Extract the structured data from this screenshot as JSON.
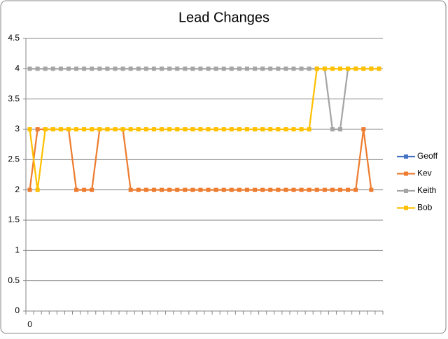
{
  "chart_data": {
    "type": "line",
    "title": "Lead Changes",
    "categories": [
      "0",
      null,
      null,
      null,
      null,
      null,
      null,
      null,
      null,
      null,
      null,
      null,
      null,
      null,
      null,
      null,
      null,
      null,
      null,
      null,
      null,
      null,
      null,
      null,
      null,
      null,
      null,
      null,
      null,
      null,
      null,
      null,
      null,
      null,
      null,
      null,
      null,
      null,
      null,
      null,
      null,
      null,
      null,
      null,
      null,
      null
    ],
    "series": [
      {
        "name": "Geoff",
        "color": "#4472c4",
        "values": [
          null,
          null,
          null,
          null,
          null,
          null,
          null,
          null,
          null,
          null,
          null,
          null,
          null,
          null,
          null,
          null,
          null,
          null,
          null,
          null,
          null,
          null,
          null,
          null,
          null,
          null,
          null,
          null,
          null,
          null,
          null,
          null,
          null,
          null,
          null,
          null,
          null,
          null,
          null,
          null,
          null,
          null,
          null,
          null,
          null,
          null
        ]
      },
      {
        "name": "Kev",
        "color": "#ed7d31",
        "values": [
          2,
          3,
          3,
          3,
          3,
          3,
          2,
          2,
          2,
          3,
          3,
          3,
          3,
          2,
          2,
          2,
          2,
          2,
          2,
          2,
          2,
          2,
          2,
          2,
          2,
          2,
          2,
          2,
          2,
          2,
          2,
          2,
          2,
          2,
          2,
          2,
          2,
          2,
          2,
          2,
          2,
          2,
          2,
          3,
          2,
          null
        ]
      },
      {
        "name": "Keith",
        "color": "#a5a5a5",
        "values": [
          4,
          4,
          4,
          4,
          4,
          4,
          4,
          4,
          4,
          4,
          4,
          4,
          4,
          4,
          4,
          4,
          4,
          4,
          4,
          4,
          4,
          4,
          4,
          4,
          4,
          4,
          4,
          4,
          4,
          4,
          4,
          4,
          4,
          4,
          4,
          4,
          4,
          4,
          4,
          3,
          3,
          4,
          4,
          4,
          4,
          4
        ]
      },
      {
        "name": "Bob",
        "color": "#ffc000",
        "values": [
          3,
          2,
          3,
          3,
          3,
          3,
          3,
          3,
          3,
          3,
          3,
          3,
          3,
          3,
          3,
          3,
          3,
          3,
          3,
          3,
          3,
          3,
          3,
          3,
          3,
          3,
          3,
          3,
          3,
          3,
          3,
          3,
          3,
          3,
          3,
          3,
          3,
          4,
          4,
          4,
          4,
          4,
          4,
          4,
          4,
          4
        ]
      }
    ],
    "ylim": [
      0,
      4.5
    ],
    "yticks": [
      0,
      0.5,
      1,
      1.5,
      2,
      2.5,
      3,
      3.5,
      4,
      4.5
    ],
    "grid": true,
    "legend": "right"
  }
}
